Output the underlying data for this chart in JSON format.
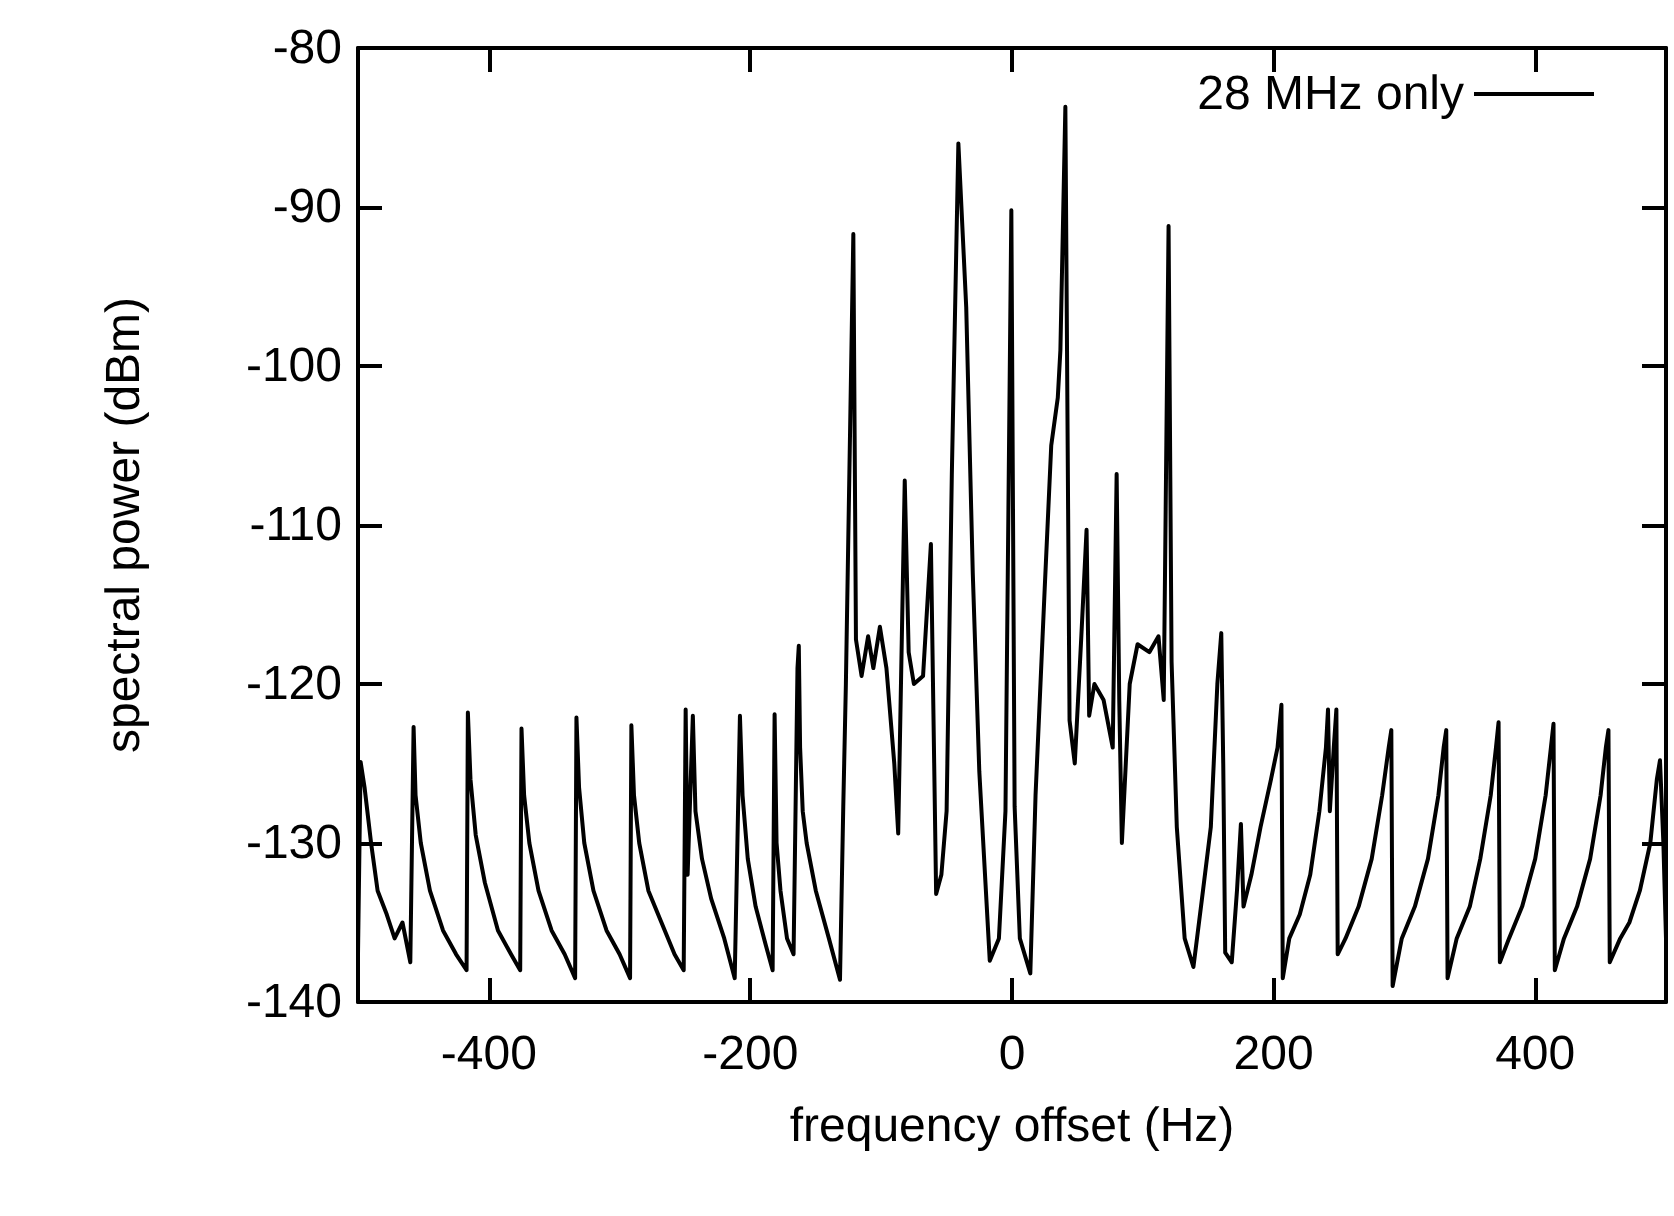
{
  "chart_data": {
    "type": "line",
    "xlabel": "frequency offset (Hz)",
    "ylabel": "spectral power (dBm)",
    "xlim": [
      -500,
      500
    ],
    "xticks": [
      -400,
      -200,
      0,
      200,
      400
    ],
    "ylim": [
      -140,
      -80
    ],
    "yticks": [
      -140,
      -130,
      -120,
      -110,
      -100,
      -90,
      -80
    ],
    "grid": false,
    "legend": "top right",
    "marker": "none",
    "line_style": "solid",
    "series": [
      {
        "name": "28 MHz only",
        "color": "#000000",
        "x": [
          -500,
          -498,
          -495,
          -490,
          -485,
          -478,
          -472,
          -466,
          -460,
          -457.5,
          -456,
          -452,
          -445,
          -435,
          -425,
          -417,
          -416,
          -414,
          -410,
          -403,
          -393,
          -383,
          -376,
          -375,
          -373,
          -369,
          -362,
          -352,
          -342,
          -334,
          -333,
          -331,
          -327,
          -320,
          -310,
          -300,
          -292,
          -291,
          -289,
          -285,
          -278,
          -268,
          -258,
          -251,
          -249.5,
          -248,
          -244,
          -242,
          -237,
          -230,
          -220,
          -212,
          -208,
          -206,
          -202,
          -196,
          -188,
          -183,
          -181.5,
          -180,
          -177,
          -172,
          -167,
          -164,
          -163,
          -162,
          -160,
          -157,
          -150,
          -140,
          -131.5,
          -129,
          -127,
          -121.3,
          -119.3,
          -115,
          -110,
          -106,
          -101,
          -96,
          -90,
          -87,
          -82,
          -79,
          -75,
          -68,
          -62,
          -58,
          -54,
          -50,
          -46,
          -41,
          -35,
          -30,
          -25,
          -17,
          -10,
          -5,
          -0.5,
          2,
          6,
          14,
          18,
          25,
          30,
          35,
          37,
          40.8,
          44,
          48,
          53,
          57,
          59,
          63,
          70,
          77,
          80,
          82,
          84,
          90,
          96,
          105,
          112,
          116,
          119.7,
          122,
          126,
          132,
          138.7,
          146,
          152,
          157,
          160,
          161.5,
          163,
          168,
          172,
          175,
          177,
          183,
          190,
          198,
          203,
          206,
          207,
          212,
          220,
          228,
          235,
          240,
          241.6,
          243,
          246,
          248,
          249,
          255,
          265,
          275,
          283,
          288,
          290,
          291,
          298,
          308,
          318,
          326,
          330,
          332,
          333,
          340,
          350,
          358,
          366,
          370,
          372,
          373,
          380,
          390,
          400,
          408,
          412,
          414,
          415,
          422,
          432,
          442,
          450,
          454,
          456,
          457,
          465,
          472,
          480,
          488,
          493,
          495.4,
          498,
          500
        ],
        "values": [
          -137,
          -124.9,
          -126.5,
          -130,
          -133,
          -134.5,
          -136,
          -135,
          -137.5,
          -122.7,
          -127,
          -130,
          -133,
          -135.5,
          -137,
          -138,
          -121.8,
          -126,
          -129.5,
          -132.5,
          -135.5,
          -137,
          -138,
          -122.8,
          -127,
          -130,
          -133,
          -135.5,
          -137,
          -138.5,
          -122.1,
          -126.5,
          -130,
          -133,
          -135.5,
          -137,
          -138.5,
          -122.6,
          -127,
          -130,
          -133,
          -135,
          -137,
          -138,
          -121.6,
          -132,
          -122,
          -128,
          -131,
          -133.5,
          -136,
          -138.5,
          -122,
          -127,
          -131,
          -134,
          -136.5,
          -138,
          -121.9,
          -130,
          -133,
          -136,
          -137,
          -119,
          -117.6,
          -124,
          -128,
          -130,
          -133,
          -136,
          -138.6,
          -127.7,
          -120,
          -91.7,
          -117.2,
          -119.5,
          -117,
          -119,
          -116.4,
          -119,
          -125,
          -129.4,
          -107.2,
          -118,
          -120,
          -119.5,
          -111.2,
          -133.2,
          -132,
          -128,
          -106.8,
          -86,
          -96.3,
          -113,
          -125.5,
          -137.4,
          -136,
          -128,
          -90.2,
          -127.7,
          -136,
          -138.2,
          -127,
          -114,
          -105,
          -102,
          -99,
          -83.7,
          -122.3,
          -125,
          -117,
          -110.3,
          -122,
          -120,
          -121,
          -124,
          -106.8,
          -121,
          -130,
          -120,
          -117.5,
          -118,
          -117,
          -121,
          -91.2,
          -118.6,
          -129,
          -136,
          -137.8,
          -133,
          -129,
          -120,
          -116.8,
          -125,
          -136.9,
          -137.5,
          -133,
          -128.8,
          -134,
          -132,
          -129,
          -126,
          -124,
          -121.3,
          -138.5,
          -136,
          -134.5,
          -132,
          -128,
          -124,
          -121.6,
          -128,
          -124,
          -121.6,
          -137,
          -136,
          -134,
          -131,
          -127,
          -124,
          -122.9,
          -139,
          -136,
          -134,
          -131,
          -127,
          -124,
          -122.9,
          -138.5,
          -136,
          -134,
          -131,
          -127,
          -124,
          -122.4,
          -137.5,
          -136,
          -134,
          -131,
          -127,
          -124,
          -122.5,
          -138,
          -136,
          -134,
          -131,
          -127,
          -124,
          -122.9,
          -137.5,
          -136,
          -135,
          -133,
          -130,
          -126,
          -124.8,
          -130,
          -136
        ]
      }
    ]
  }
}
